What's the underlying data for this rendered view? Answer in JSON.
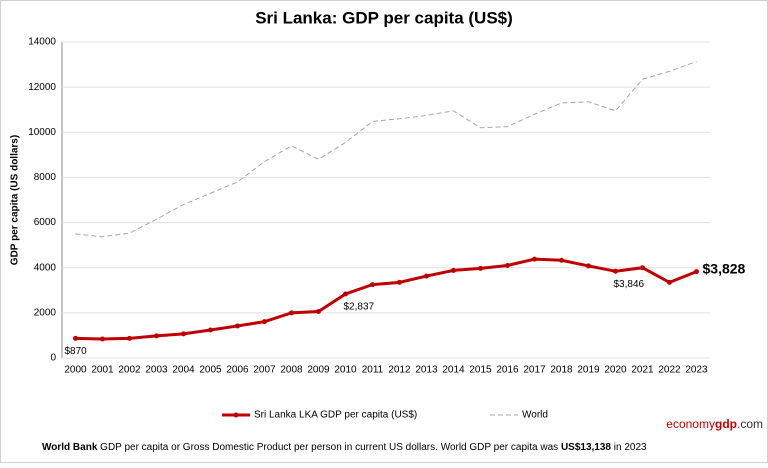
{
  "chart_data": {
    "type": "line",
    "title": "Sri Lanka: GDP per capita (US$)",
    "y_label": "GDP per capita (US dollars)",
    "categories": [
      "2000",
      "2001",
      "2002",
      "2003",
      "2004",
      "2005",
      "2006",
      "2007",
      "2008",
      "2009",
      "2010",
      "2011",
      "2012",
      "2013",
      "2014",
      "2015",
      "2016",
      "2017",
      "2018",
      "2019",
      "2020",
      "2021",
      "2022",
      "2023"
    ],
    "series": [
      {
        "name": "Sri Lanka LKA GDP per capita (US$)",
        "color": "#c00000",
        "style": "solid",
        "markers": true,
        "values": [
          870,
          840,
          870,
          980,
          1070,
          1240,
          1420,
          1610,
          2000,
          2060,
          2837,
          3250,
          3350,
          3630,
          3880,
          3970,
          4100,
          4380,
          4330,
          4080,
          3846,
          4000,
          3350,
          3828
        ],
        "value_labels": [
          "$870",
          null,
          null,
          null,
          null,
          null,
          null,
          null,
          null,
          null,
          "$2,837",
          null,
          null,
          null,
          null,
          null,
          null,
          null,
          null,
          null,
          "$3,846",
          null,
          null,
          "$3,828"
        ]
      },
      {
        "name": "World",
        "color": "#a6a6a6",
        "style": "dashed",
        "markers": false,
        "values": [
          5500,
          5370,
          5530,
          6150,
          6800,
          7300,
          7800,
          8700,
          9400,
          8800,
          9550,
          10480,
          10600,
          10750,
          10950,
          10200,
          10250,
          10800,
          11300,
          11350,
          10950,
          12350,
          12700,
          13138
        ]
      }
    ],
    "ylim": [
      0,
      14000
    ],
    "yticks": [
      0,
      2000,
      4000,
      6000,
      8000,
      10000,
      12000,
      14000
    ],
    "grid": true
  },
  "footer": {
    "source_bold": "World Bank",
    "source_text": "GDP per capita or Gross Domestic Product per person in current US dollars.",
    "world_text": "World GDP per capita was",
    "world_value": "US$13,138",
    "world_year": "in 2023"
  },
  "logo": {
    "part1": "economy",
    "part2": "gdp",
    "part3": ".com"
  }
}
